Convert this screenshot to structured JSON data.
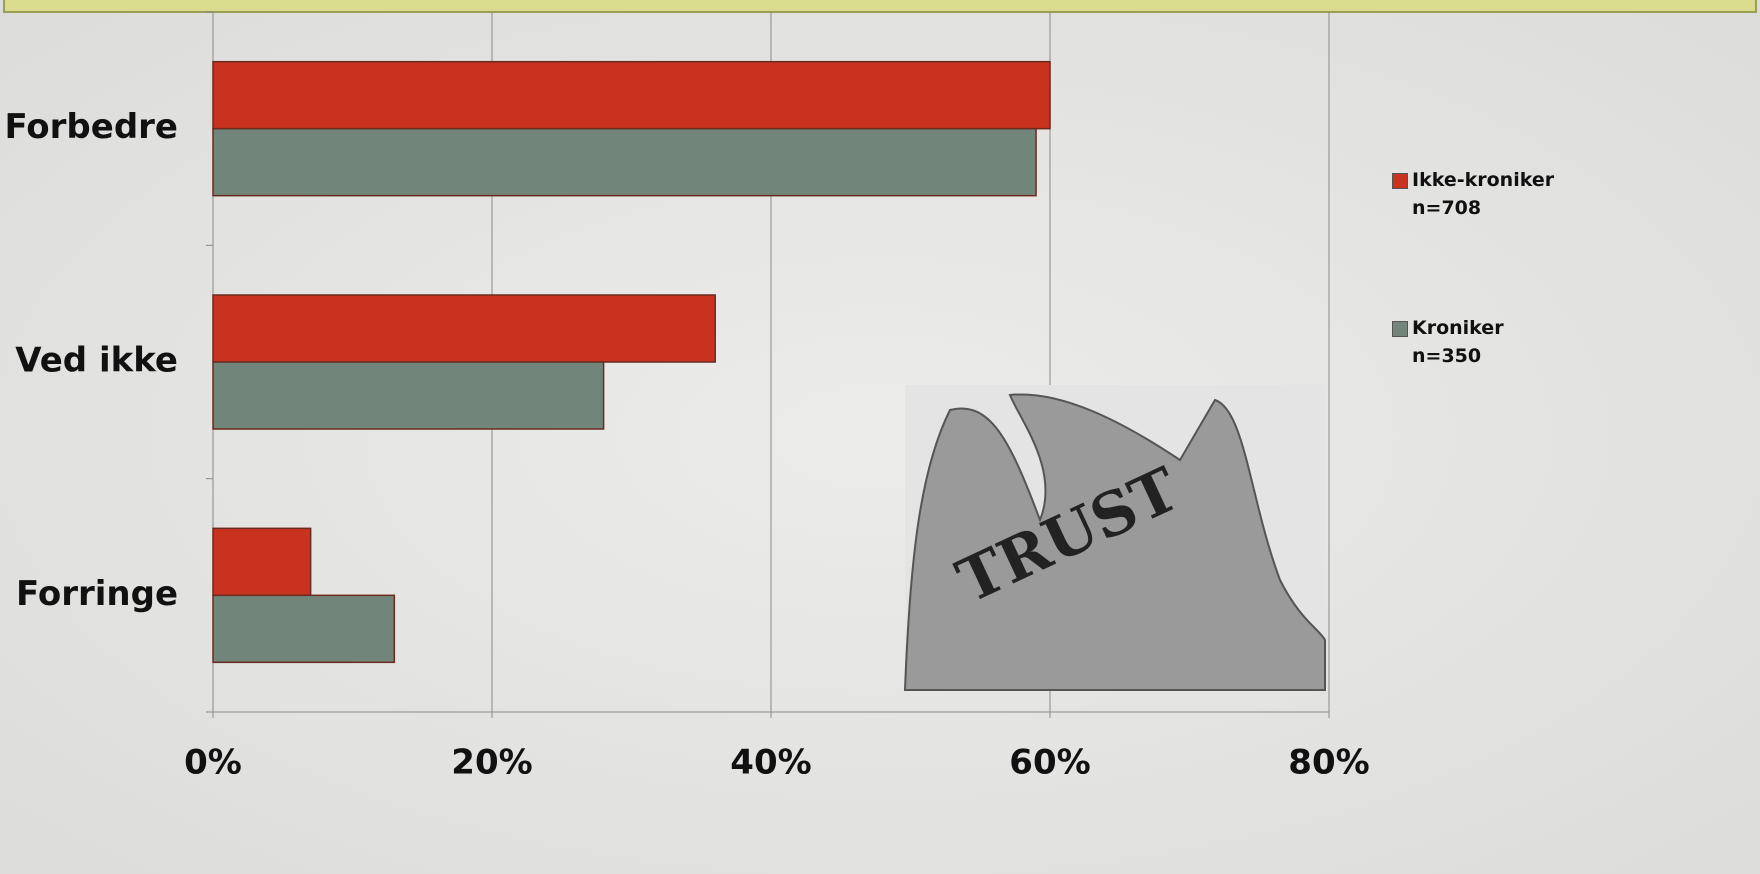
{
  "chart_data": {
    "type": "bar",
    "orientation": "horizontal",
    "categories": [
      "Forbedre",
      "Ved ikke",
      "Forringe"
    ],
    "series": [
      {
        "name": "Ikke-kroniker\nn=708",
        "color": "#c8321f",
        "values": [
          60,
          36,
          7
        ]
      },
      {
        "name": "Kroniker\nn=350",
        "color": "#72857a",
        "values": [
          59,
          28,
          13
        ]
      }
    ],
    "xlim": [
      0,
      80
    ],
    "xticks": [
      {
        "value": 0,
        "label": "0%"
      },
      {
        "value": 20,
        "label": "20%"
      },
      {
        "value": 40,
        "label": "40%"
      },
      {
        "value": 60,
        "label": "60%"
      },
      {
        "value": 80,
        "label": "80%"
      }
    ],
    "grid": true,
    "legend": "right",
    "annotation": "TRUST"
  }
}
